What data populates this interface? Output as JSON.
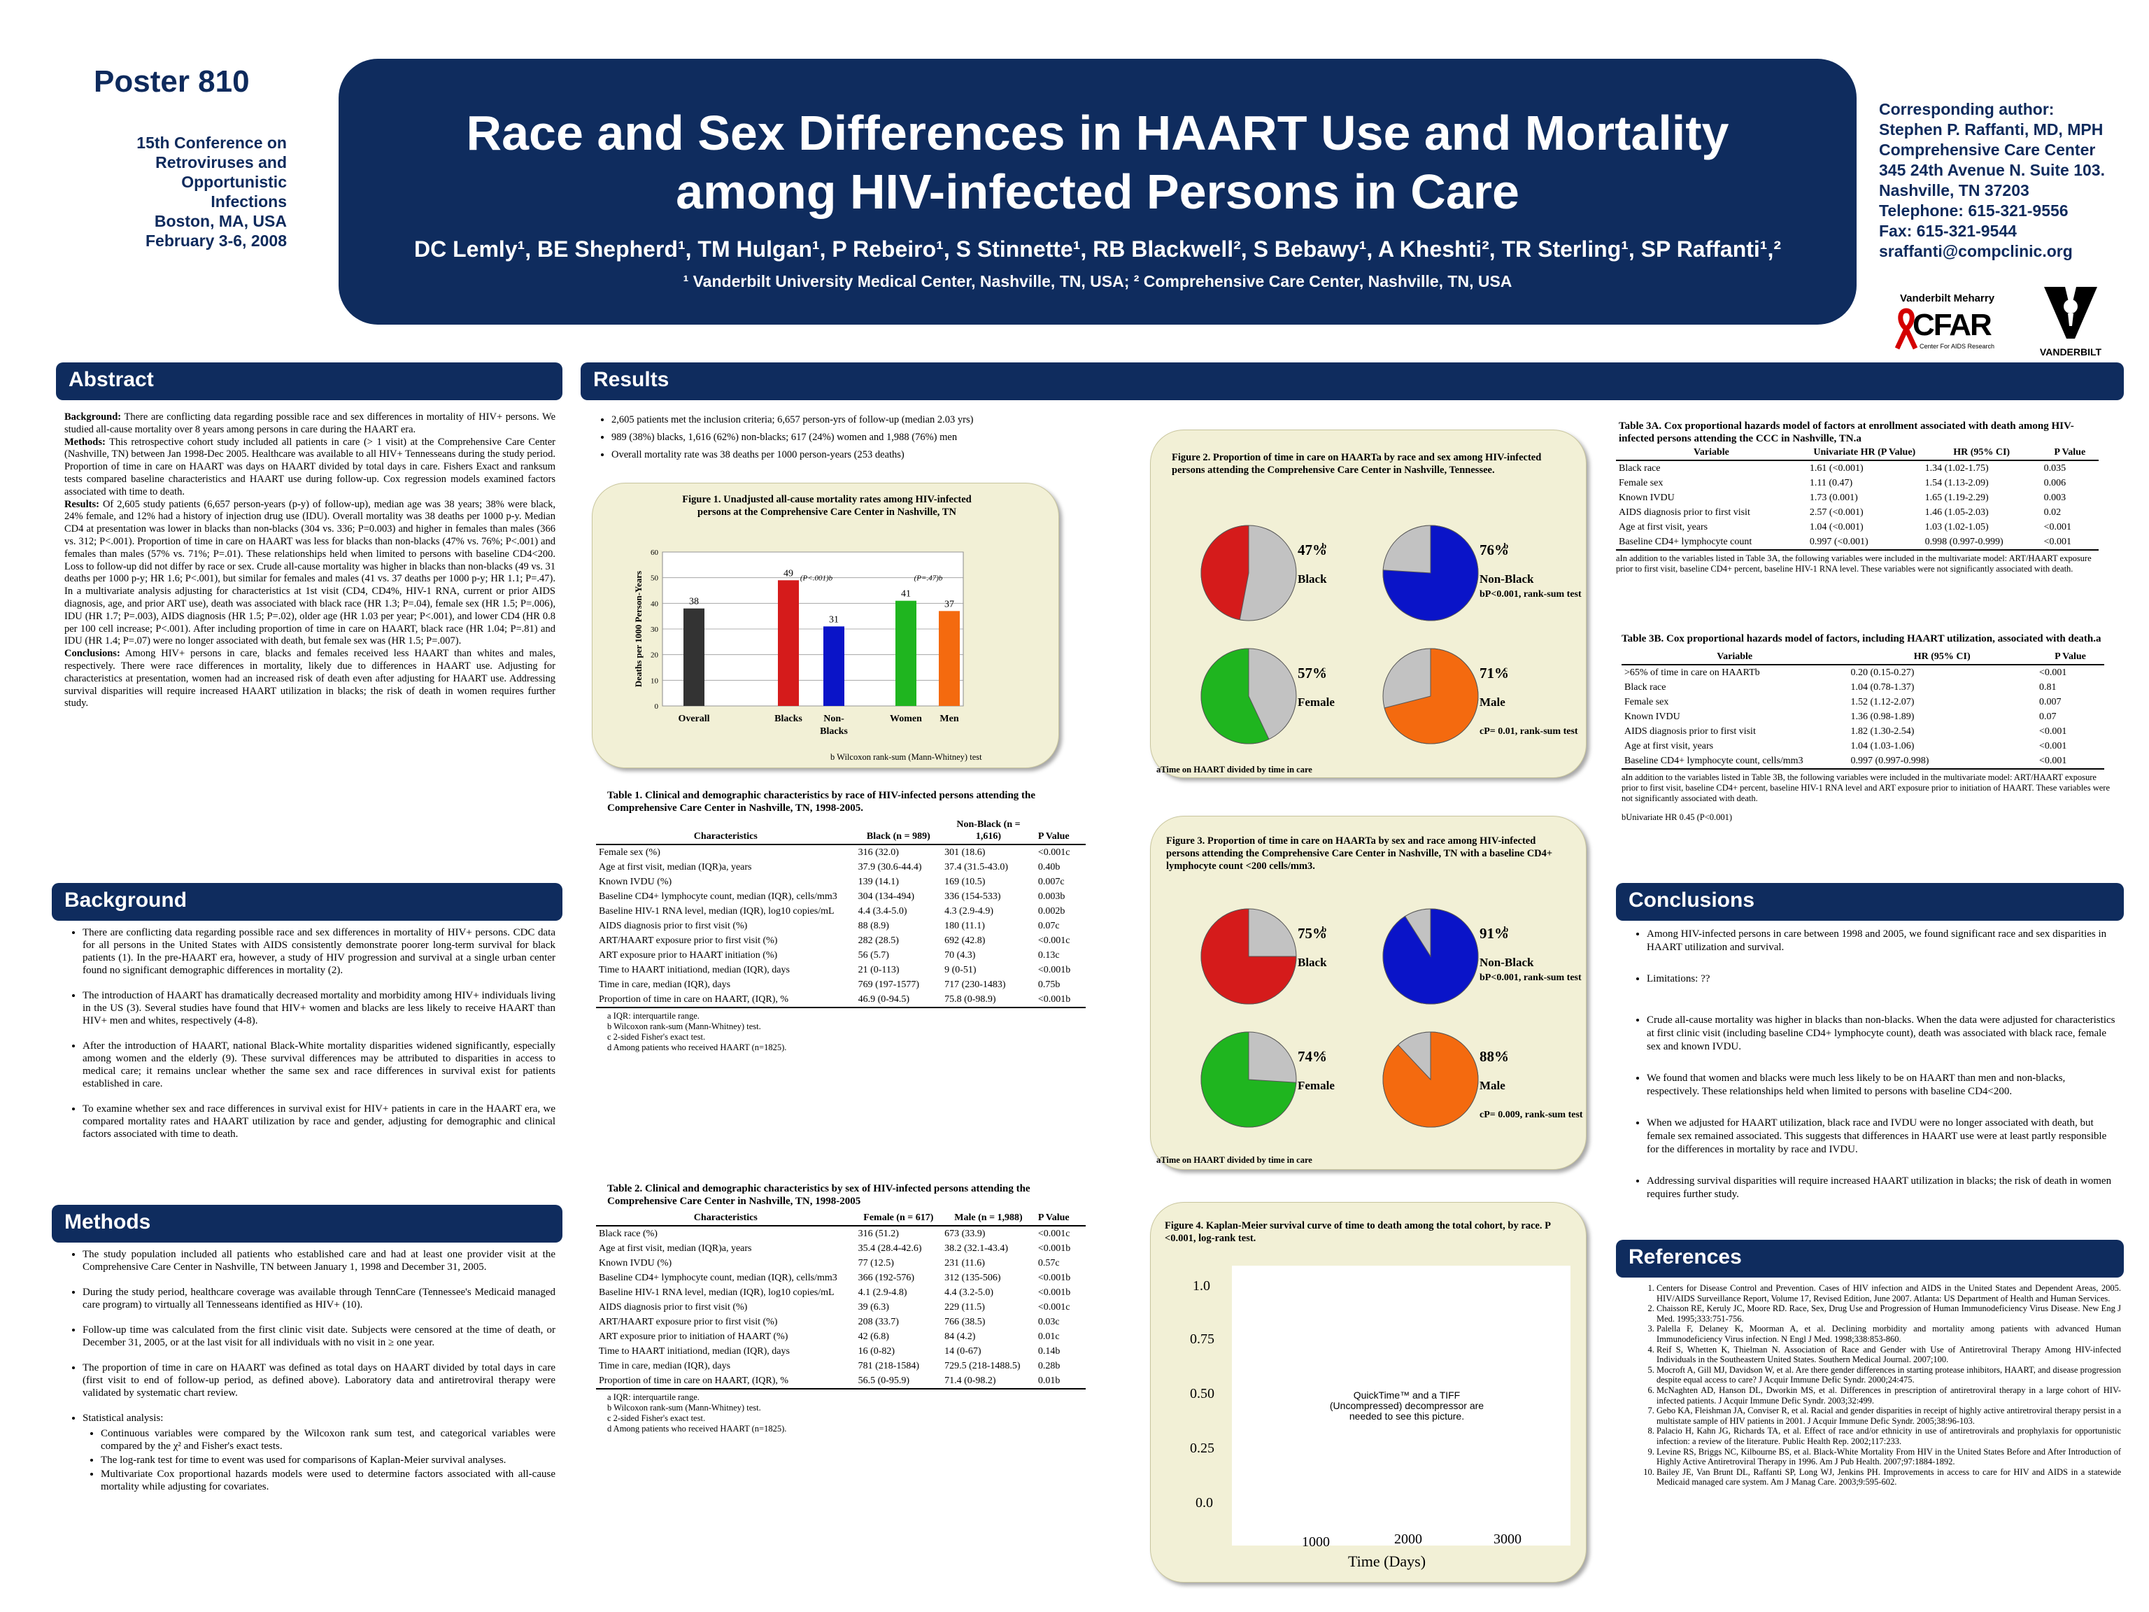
{
  "header": {
    "poster_no": "Poster 810",
    "conf_line1": "15th Conference on",
    "conf_line2": "Retroviruses and",
    "conf_line3": "Opportunistic",
    "conf_line4": "Infections",
    "conf_line5": "Boston, MA, USA",
    "conf_line6": "February 3-6, 2008",
    "title_line1": "Race and Sex Differences in HAART Use and Mortality",
    "title_line2": "among HIV-infected Persons in Care",
    "authors": "DC Lemly¹, BE Shepherd¹, TM Hulgan¹, P Rebeiro¹, S Stinnette¹, RB Blackwell², S Bebawy¹, A Kheshti², TR Sterling¹, SP Raffanti¹,²",
    "affiliations": "¹ Vanderbilt University Medical Center, Nashville, TN, USA; ² Comprehensive Care Center, Nashville, TN, USA",
    "contact": [
      "Corresponding author:",
      "Stephen P. Raffanti, MD, MPH",
      "Comprehensive Care Center",
      "345 24th Avenue N. Suite 103.",
      "Nashville, TN 37203",
      "Telephone: 615-321-9556",
      "Fax: 615-321-9544",
      "sraffanti@compclinic.org"
    ],
    "logo1_top": "Vanderbilt Meharry",
    "logo1_main": "CFAR",
    "logo1_sub": "Center For AIDS Research",
    "logo2_text": "VANDERBILT"
  },
  "sections": {
    "abstract": "Abstract",
    "background": "Background",
    "methods": "Methods",
    "results": "Results",
    "conclusions": "Conclusions",
    "references": "References"
  },
  "abstract": {
    "p1_lead": "Background:",
    "p1": " There are conflicting data regarding possible race and sex differences in mortality of HIV+ persons. We studied all-cause mortality over 8 years among persons in care during the HAART era.",
    "p2_lead": "Methods:",
    "p2": " This retrospective cohort study included all patients in care (> 1 visit) at the Comprehensive Care Center (Nashville, TN) between Jan 1998-Dec 2005. Healthcare was available to all HIV+ Tennesseans during the study period. Proportion of time in care on HAART was days on HAART divided by total days in care. Fishers Exact and ranksum tests compared baseline characteristics and HAART use during follow-up. Cox regression models examined factors associated with time to death.",
    "p3_lead": "Results:",
    "p3": " Of 2,605 study patients (6,657 person-years (p-y) of follow-up), median age was 38 years; 38% were black, 24% female, and 12% had a history of injection drug use (IDU). Overall mortality was 38 deaths per 1000 p-y. Median CD4 at presentation was lower in blacks than non-blacks (304 vs. 336; P=0.003) and higher in females than males (366 vs. 312; P<.001). Proportion of time in care on HAART was less for blacks than non-blacks (47% vs. 76%; P<.001) and females than males (57% vs. 71%; P=.01). These relationships held when limited to persons with baseline CD4<200. Loss to follow-up did not differ by race or sex. Crude all-cause mortality was higher in blacks than non-blacks (49 vs. 31 deaths per 1000 p-y; HR 1.6; P<.001), but similar for females and males (41 vs. 37 deaths per 1000 p-y; HR 1.1; P=.47). In a multivariate analysis adjusting for characteristics at 1st visit (CD4, CD4%, HIV-1 RNA, current or prior AIDS diagnosis, age, and prior ART use), death was associated with black race (HR 1.3; P=.04), female sex (HR 1.5; P=.006), IDU (HR 1.7; P=.003), AIDS diagnosis (HR 1.5; P=.02), older age (HR 1.03 per year; P<.001), and lower CD4 (HR 0.8 per 100 cell increase; P<.001). After including proportion of time in care on HAART, black race (HR 1.04; P=.81) and IDU (HR 1.4; P=.07) were no longer associated with death, but female sex was (HR 1.5; P=.007).",
    "p4_lead": "Conclusions:",
    "p4": " Among HIV+ persons in care, blacks and females received less HAART than whites and males, respectively. There were race differences in mortality, likely due to differences in HAART use. Adjusting for characteristics at presentation, women had an increased risk of death even after adjusting for HAART use. Addressing survival disparities will require increased HAART utilization in blacks; the risk of death in women requires further study."
  },
  "background": [
    "There are conflicting data regarding possible race and sex differences in mortality of HIV+ persons. CDC data for all persons in the United States with AIDS consistently demonstrate poorer long-term survival for black patients (1). In the pre-HAART era, however, a study of HIV progression and survival at a single urban center found no significant demographic differences in mortality (2).",
    "The introduction of HAART has dramatically decreased mortality and morbidity among HIV+ individuals living in the US (3). Several studies have found that HIV+ women and blacks are less likely to receive HAART than HIV+ men and whites, respectively (4-8).",
    "After the introduction of HAART, national Black-White mortality disparities widened significantly, especially among women and the elderly (9). These survival differences may be attributed to disparities in access to medical care; it remains unclear whether the same sex and race differences in survival exist for patients established in care.",
    "To examine whether sex and race differences in survival exist for HIV+ patients in care in the HAART era, we compared mortality rates and HAART utilization by race and gender, adjusting for demographic and clinical factors associated with time to death."
  ],
  "methods": {
    "items": [
      "The study population included all patients who established care and had at least one provider visit at the Comprehensive Care Center in Nashville, TN between January 1, 1998 and December 31, 2005.",
      "During the study period, healthcare coverage was available through TennCare (Tennessee's Medicaid managed care program) to virtually all Tennesseans identified as HIV+ (10).",
      "Follow-up time was calculated from the first clinic visit date. Subjects were censored at the time of death, or December 31, 2005, or at the last visit for all individuals with no visit in ≥ one year.",
      "The proportion of time in care on HAART was defined as total days on HAART divided by total days in care (first visit to end of follow-up period, as defined above). Laboratory data and antiretroviral therapy were validated by systematic chart review."
    ],
    "stats_head": "Statistical analysis:",
    "stats": [
      "Continuous variables were compared by the Wilcoxon rank sum test, and categorical variables were compared by the χ² and Fisher's exact tests.",
      "The log-rank test for time to event was used for comparisons of Kaplan-Meier survival analyses.",
      "Multivariate Cox proportional hazards models were used to determine factors associated with all-cause mortality while adjusting for covariates."
    ]
  },
  "results_bullets": [
    "2,605 patients met the inclusion criteria; 6,657 person-yrs of follow-up (median 2.03 yrs)",
    "989 (38%) blacks, 1,616 (62%) non-blacks; 617 (24%) women and 1,988 (76%) men",
    "Overall mortality rate was 38 deaths per 1000 person-years (253 deaths)"
  ],
  "chart_data": [
    {
      "type": "bar",
      "title": "Figure 1. Unadjusted all-cause mortality rates among HIV-infected persons at the Comprehensive Care Center in Nashville, TN",
      "ylabel": "Deaths per 1000 Person-Years",
      "ylim": [
        0,
        60
      ],
      "yticks": [
        0,
        10,
        20,
        30,
        40,
        50,
        60
      ],
      "categories": [
        "Overall",
        "Blacks",
        "Non-Blacks",
        "Women",
        "Men"
      ],
      "values": [
        38,
        49,
        31,
        41,
        37
      ],
      "colors": [
        "#333333",
        "#d51b1b",
        "#0a14c8",
        "#1fb51f",
        "#f46a0f"
      ],
      "annotations": [
        "(P<.001)b",
        "(P=.47)b"
      ],
      "footnote": "b Wilcoxon rank-sum (Mann-Whitney) test"
    },
    {
      "type": "pie",
      "title": "Figure 2. Proportion of time in care on HAARTa by race and sex among HIV-infected persons attending the Comprehensive Care Center in Nashville, Tennessee.",
      "slices": [
        {
          "label": "Black",
          "value": 47,
          "text": "47%b",
          "color": "#d51b1b"
        },
        {
          "label": "Non-Black",
          "value": 76,
          "text": "76%b",
          "color": "#0a14c8"
        },
        {
          "label": "Female",
          "value": 57,
          "text": "57%c",
          "color": "#1fb51f"
        },
        {
          "label": "Male",
          "value": 71,
          "text": "71%c",
          "color": "#f46a0f"
        }
      ],
      "notes": [
        "bP<0.001, rank-sum test",
        "cP= 0.01, rank-sum test"
      ],
      "footnote": "aTime on HAART divided by time in care"
    },
    {
      "type": "pie",
      "title": "Figure 3. Proportion of time in care on HAARTa by sex and race among HIV-infected persons attending the Comprehensive Care Center in Nashville, TN with a baseline CD4+ lymphocyte count <200 cells/mm3.",
      "slices": [
        {
          "label": "Black",
          "value": 75,
          "text": "75%b",
          "color": "#d51b1b"
        },
        {
          "label": "Non-Black",
          "value": 91,
          "text": "91%b",
          "color": "#0a14c8"
        },
        {
          "label": "Female",
          "value": 74,
          "text": "74%c",
          "color": "#1fb51f"
        },
        {
          "label": "Male",
          "value": 88,
          "text": "88%c",
          "color": "#f46a0f"
        }
      ],
      "notes": [
        "bP<0.001, rank-sum test",
        "cP= 0.009, rank-sum test"
      ],
      "footnote": "aTime on HAART divided by time in care"
    },
    {
      "type": "line",
      "title": "Figure 4. Kaplan-Meier survival curve of time to death among the total cohort, by race. P <0.001, log-rank test.",
      "xlabel": "Time (Days)",
      "yticks": [
        "1.0",
        "0.75",
        "0.50",
        "0.25",
        "0.0"
      ],
      "xticks": [
        "1000",
        "2000",
        "3000"
      ],
      "placeholder": "QuickTime™ and a TIFF (Uncompressed) decompressor are needed to see this picture."
    }
  ],
  "table1": {
    "caption": "Table 1.  Clinical and demographic characteristics by race of HIV-infected persons attending the Comprehensive Care Center in Nashville, TN, 1998-2005.",
    "headers": [
      "Characteristics",
      "Black (n = 989)",
      "Non-Black (n = 1,616)",
      "P Value"
    ],
    "rows": [
      [
        "Female sex (%)",
        "316 (32.0)",
        "301 (18.6)",
        "<0.001c"
      ],
      [
        "Age at first visit, median (IQR)a, years",
        "37.9 (30.6-44.4)",
        "37.4 (31.5-43.0)",
        "0.40b"
      ],
      [
        "Known IVDU (%)",
        "139 (14.1)",
        "169 (10.5)",
        "0.007c"
      ],
      [
        "Baseline CD4+ lymphocyte count, median (IQR), cells/mm3",
        "304 (134-494)",
        "336 (154-533)",
        "0.003b"
      ],
      [
        "Baseline HIV-1 RNA level, median (IQR), log10 copies/mL",
        "4.4 (3.4-5.0)",
        "4.3 (2.9-4.9)",
        "0.002b"
      ],
      [
        "AIDS diagnosis prior to first visit (%)",
        "88 (8.9)",
        "180 (11.1)",
        "0.07c"
      ],
      [
        "ART/HAART exposure prior to first visit (%)",
        "282 (28.5)",
        "692 (42.8)",
        "<0.001c"
      ],
      [
        "ART exposure prior to HAART initiation (%)",
        "56 (5.7)",
        "70 (4.3)",
        "0.13c"
      ],
      [
        "Time to HAART initiationd, median (IQR), days",
        "21 (0-113)",
        "9 (0-51)",
        "<0.001b"
      ],
      [
        "Time in care, median (IQR), days",
        "769 (197-1577)",
        "717 (230-1483)",
        "0.75b"
      ],
      [
        "Proportion of time in care on HAART, (IQR), %",
        "46.9 (0-94.5)",
        "75.8 (0-98.9)",
        "<0.001b"
      ]
    ],
    "footnotes": [
      "a IQR: interquartile range.",
      "b Wilcoxon rank-sum (Mann-Whitney) test.",
      "c 2-sided Fisher's exact test.",
      "d Among patients who received HAART (n=1825)."
    ]
  },
  "table2": {
    "caption": "Table 2.  Clinical and demographic characteristics by sex of HIV-infected persons attending the Comprehensive Care Center in Nashville, TN, 1998-2005",
    "headers": [
      "Characteristics",
      "Female (n = 617)",
      "Male (n = 1,988)",
      "P Value"
    ],
    "rows": [
      [
        "Black race (%)",
        "316 (51.2)",
        "673 (33.9)",
        "<0.001c"
      ],
      [
        "Age at first visit, median (IQR)a, years",
        "35.4 (28.4-42.6)",
        "38.2 (32.1-43.4)",
        "<0.001b"
      ],
      [
        "Known IVDU (%)",
        "77 (12.5)",
        "231 (11.6)",
        "0.57c"
      ],
      [
        "Baseline CD4+ lymphocyte count, median (IQR), cells/mm3",
        "366 (192-576)",
        "312 (135-506)",
        "<0.001b"
      ],
      [
        "Baseline HIV-1 RNA level, median (IQR), log10 copies/mL",
        "4.1 (2.9-4.8)",
        "4.4 (3.2-5.0)",
        "<0.001b"
      ],
      [
        "AIDS diagnosis prior to first visit (%)",
        "39 (6.3)",
        "229 (11.5)",
        "<0.001c"
      ],
      [
        "ART/HAART exposure prior to first visit (%)",
        "208 (33.7)",
        "766 (38.5)",
        "0.03c"
      ],
      [
        "ART exposure prior to initiation of HAART (%)",
        "42 (6.8)",
        "84 (4.2)",
        "0.01c"
      ],
      [
        "Time to HAART initiationd, median (IQR), days",
        "16 (0-82)",
        "14 (0-67)",
        "0.14b"
      ],
      [
        "Time in care, median (IQR), days",
        "781 (218-1584)",
        "729.5 (218-1488.5)",
        "0.28b"
      ],
      [
        "Proportion of time in care on HAART, (IQR), %",
        "56.5 (0-95.9)",
        "71.4 (0-98.2)",
        "0.01b"
      ]
    ],
    "footnotes": [
      "a IQR: interquartile range.",
      "b Wilcoxon rank-sum (Mann-Whitney) test.",
      "c 2-sided Fisher's exact test.",
      "d Among patients who received HAART (n=1825)."
    ]
  },
  "table3a": {
    "caption": "Table 3A.  Cox proportional hazards model of factors at enrollment associated with death among HIV-infected persons attending the CCC in Nashville, TN.a",
    "headers": [
      "Variable",
      "Univariate HR (P Value)",
      "HR (95% CI)",
      "P Value"
    ],
    "rows": [
      [
        "Black race",
        "1.61 (<0.001)",
        "1.34 (1.02-1.75)",
        "0.035"
      ],
      [
        "Female sex",
        "1.11 (0.47)",
        "1.54 (1.13-2.09)",
        "0.006"
      ],
      [
        "Known IVDU",
        "1.73 (0.001)",
        "1.65 (1.19-2.29)",
        "0.003"
      ],
      [
        "AIDS diagnosis prior to first visit",
        "2.57 (<0.001)",
        "1.46 (1.05-2.03)",
        "0.02"
      ],
      [
        "Age at first visit, years",
        "1.04 (<0.001)",
        "1.03 (1.02-1.05)",
        "<0.001"
      ],
      [
        "Baseline CD4+ lymphocyte count",
        "0.997 (<0.001)",
        "0.998 (0.997-0.999)",
        "<0.001"
      ]
    ],
    "footnote": "aIn addition to the variables listed in Table 3A, the following variables were included in the multivariate model: ART/HAART exposure prior to first visit, baseline CD4+ percent, baseline HIV-1 RNA level. These variables were not significantly associated with death."
  },
  "table3b": {
    "caption": "Table 3B.  Cox proportional hazards model of factors, including HAART utilization, associated with death.a",
    "headers": [
      "Variable",
      "HR (95% CI)",
      "P Value"
    ],
    "rows": [
      [
        ">65% of time in care on HAARTb",
        "0.20 (0.15-0.27)",
        "<0.001"
      ],
      [
        "Black race",
        "1.04 (0.78-1.37)",
        "0.81"
      ],
      [
        "Female sex",
        "1.52 (1.12-2.07)",
        "0.007"
      ],
      [
        "Known IVDU",
        "1.36 (0.98-1.89)",
        "0.07"
      ],
      [
        "AIDS diagnosis prior to first visit",
        "1.82 (1.30-2.54)",
        "<0.001"
      ],
      [
        "Age at first visit, years",
        "1.04 (1.03-1.06)",
        "<0.001"
      ],
      [
        "Baseline CD4+ lymphocyte count, cells/mm3",
        "0.997 (0.997-0.998)",
        "<0.001"
      ]
    ],
    "footnote": "aIn addition to the variables listed in Table 3B, the following variables were included in the multivariate model: ART/HAART exposure prior to first visit, baseline CD4+ percent, baseline HIV-1 RNA level and ART exposure prior to initiation of HAART. These variables were not significantly associated with death.",
    "footnote2": "bUnivariate HR 0.45 (P<0.001)"
  },
  "conclusions": [
    "Among HIV-infected persons in care between 1998 and 2005, we found significant race and sex disparities in HAART utilization and survival.",
    "Limitations: ??",
    "Crude all-cause mortality was higher in blacks than non-blacks. When the data were adjusted for characteristics at first clinic visit (including baseline CD4+ lymphocyte count), death was associated with black race, female sex and known IVDU.",
    "We found that women and blacks were much less likely to be on HAART than men and non-blacks, respectively. These relationships held when limited to persons with baseline CD4<200.",
    "When we adjusted for HAART utilization, black race and IVDU were no longer associated with death, but female sex remained associated. This suggests that differences in HAART use were at least partly responsible for the differences in mortality by race and IVDU.",
    "Addressing survival disparities will require increased HAART utilization in blacks; the risk of death in women requires further study."
  ],
  "references": [
    "Centers for Disease Control and Prevention. Cases of HIV infection and AIDS in the United States and Dependent Areas, 2005. HIV/AIDS Surveillance Report, Volume 17, Revised Edition, June 2007. Atlanta: US Department of Health and Human Services.",
    "Chaisson RE, Keruly JC, Moore RD. Race, Sex, Drug Use and Progression of Human Immunodeficiency Virus Disease. New Eng J Med. 1995;333:751-756.",
    "Palella F, Delaney K, Moorman A, et al. Declining morbidity and mortality among patients with advanced Human Immunodeficiency Virus infection. N Engl J Med. 1998;338:853-860.",
    "Reif S, Whetten K, Thielman N. Association of Race and Gender with Use of Antiretroviral Therapy Among HIV-infected Individuals in the Southeastern United States. Southern Medical Journal. 2007;100.",
    "Mocroft A, Gill MJ, Davidson W, et al. Are there gender differences in starting protease inhibitors, HAART, and disease progression despite equal access to care? J Acquir Immune Defic Syndr. 2000;24:475.",
    "McNaghten AD, Hanson DL, Dworkin MS, et al. Differences in prescription of antiretroviral therapy in a large cohort of HIV-infected patients. J Acquir Immune Defic Syndr. 2003;32:499.",
    "Gebo KA, Fleishman JA, Conviser R, et al. Racial and gender disparities in receipt of highly active antiretroviral therapy persist in a multistate sample of HIV patients in 2001. J Acquir Immune Defic Syndr. 2005;38:96-103.",
    "Palacio H, Kahn JG, Richards TA, et al. Effect of race and/or ethnicity in use of antiretrovirals and prophylaxis for opportunistic infection: a review of the literature. Public Health Rep. 2002;117:233.",
    "Levine RS, Briggs NC, Kilbourne BS, et al. Black-White Mortality From HIV in the United States Before and After Introduction of Highly Active Antiretroviral Therapy in 1996. Am J Pub Health. 2007;97:1884-1892.",
    "Bailey JE, Van Brunt DL, Raffanti SP, Long WJ, Jenkins PH. Improvements in access to care for HIV and AIDS in a statewide Medicaid managed care system. Am J Manag Care. 2003;9:595-602."
  ]
}
